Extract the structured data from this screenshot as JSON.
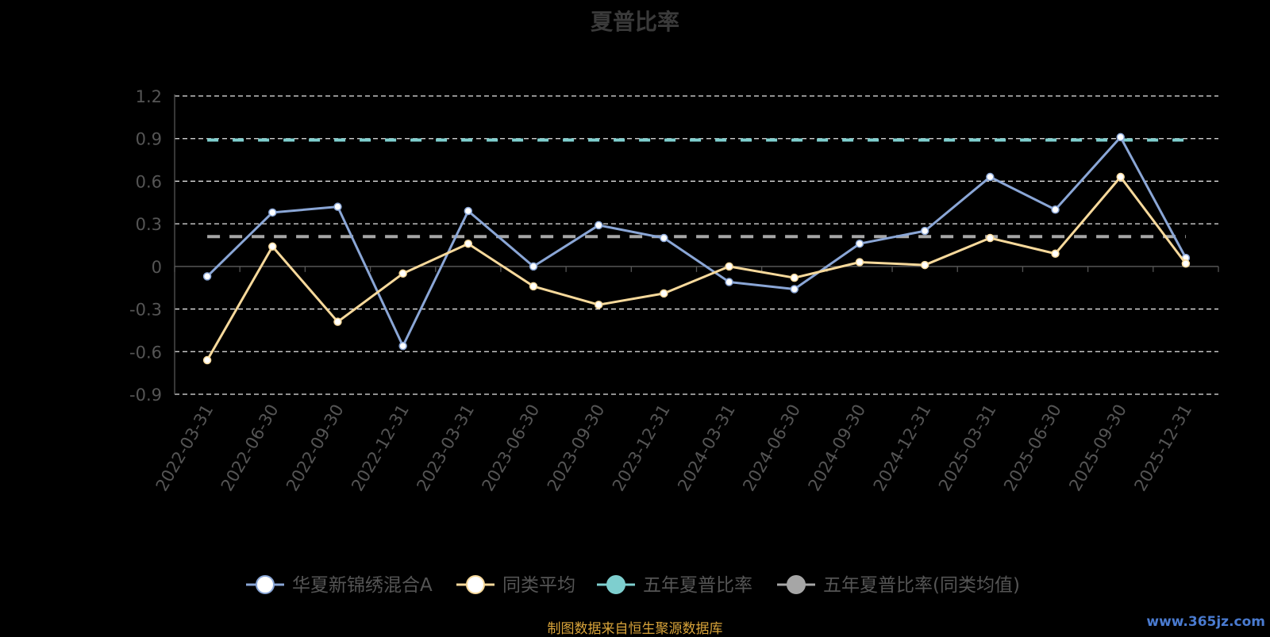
{
  "chart_data": {
    "type": "line",
    "title": "夏普比率",
    "categories": [
      "2022-03-31",
      "2022-06-30",
      "2022-09-30",
      "2022-12-31",
      "2023-03-31",
      "2023-06-30",
      "2023-09-30",
      "2023-12-31",
      "2024-03-31",
      "2024-06-30",
      "2024-09-30",
      "2024-12-31",
      "2025-03-31",
      "2025-06-30",
      "2025-09-30",
      "2025-12-31"
    ],
    "ylim": [
      -0.9,
      1.2
    ],
    "yticks": [
      -0.9,
      -0.6,
      -0.3,
      0,
      0.3,
      0.6,
      0.9,
      1.2
    ],
    "ytick_labels": [
      "-0.9",
      "-0.6",
      "-0.3",
      "0",
      "0.3",
      "0.6",
      "0.9",
      "1.2"
    ],
    "grid": true,
    "legend_position": "bottom",
    "series": [
      {
        "name": "华夏新锦绣混合A",
        "color": "#8aa6d6",
        "style": "solid",
        "values": [
          -0.07,
          0.38,
          0.42,
          -0.56,
          0.39,
          0.0,
          0.29,
          0.2,
          -0.11,
          -0.16,
          0.16,
          0.25,
          0.63,
          0.4,
          0.91,
          0.06
        ]
      },
      {
        "name": "同类平均",
        "color": "#f7d99b",
        "style": "solid",
        "values": [
          -0.66,
          0.14,
          -0.39,
          -0.05,
          0.16,
          -0.14,
          -0.27,
          -0.19,
          0.0,
          -0.08,
          0.03,
          0.01,
          0.2,
          0.09,
          0.63,
          0.02
        ]
      },
      {
        "name": "五年夏普比率",
        "color": "#7ecfcf",
        "style": "dashed",
        "values": [
          0.89,
          0.89,
          0.89,
          0.89,
          0.89,
          0.89,
          0.89,
          0.89,
          0.89,
          0.89,
          0.89,
          0.89,
          0.89,
          0.89,
          0.89,
          0.89
        ]
      },
      {
        "name": "五年夏普比率(同类均值)",
        "color": "#a6a6a6",
        "style": "dashed",
        "values": [
          0.21,
          0.21,
          0.21,
          0.21,
          0.21,
          0.21,
          0.21,
          0.21,
          0.21,
          0.21,
          0.21,
          0.21,
          0.21,
          0.21,
          0.21,
          0.21
        ]
      }
    ]
  },
  "footer": {
    "source": "制图数据来自恒生聚源数据库",
    "watermark": "www.365jz.com"
  }
}
